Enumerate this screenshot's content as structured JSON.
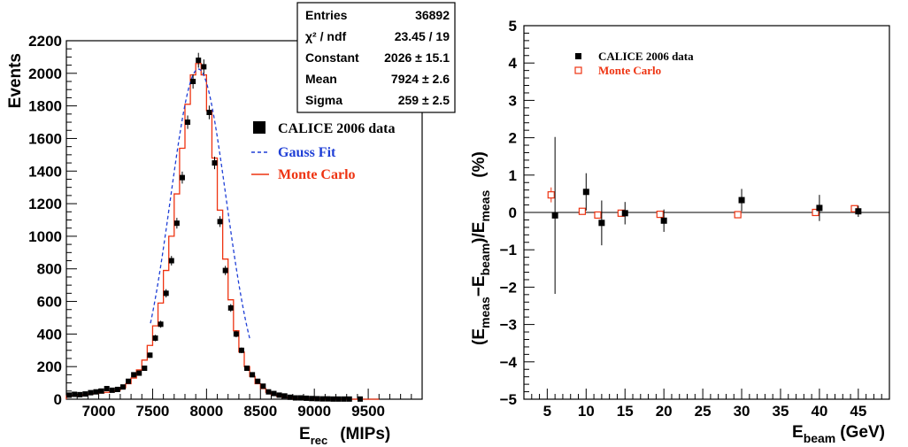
{
  "chart_data": [
    {
      "type": "histogram",
      "title": "",
      "xlabel": {
        "main": "E",
        "sub": "rec",
        "unit": "(MIPs)"
      },
      "ylabel": "Events",
      "xlim": [
        6700,
        10000
      ],
      "ylim": [
        0,
        2200
      ],
      "xticks": [
        7000,
        7500,
        8000,
        8500,
        9000,
        9500
      ],
      "yticks": [
        0,
        200,
        400,
        600,
        800,
        1000,
        1200,
        1400,
        1600,
        1800,
        2000,
        2200
      ],
      "bin_width": 50,
      "grid": false,
      "legend_position": "right",
      "stat_box": {
        "rows": [
          {
            "label": "Entries",
            "value": "36892"
          },
          {
            "label": "χ² / ndf",
            "value": "23.45 / 19"
          },
          {
            "label": "Constant",
            "value": "2026 ± 15.1"
          },
          {
            "label": "Mean",
            "value": "7924 ± 2.6"
          },
          {
            "label": "Sigma",
            "value": "259 ± 2.5"
          }
        ]
      },
      "legend": [
        {
          "label": "CALICE 2006 data",
          "color": "#000000",
          "marker": "square"
        },
        {
          "label": "Gauss Fit",
          "color": "#1f3fd6",
          "marker": "dashed-line"
        },
        {
          "label": "Monte Carlo",
          "color": "#ee3311",
          "marker": "line"
        }
      ],
      "gauss_fit": {
        "constant": 2026,
        "mean": 7924,
        "sigma": 259,
        "range": [
          7480,
          8400
        ]
      },
      "series": [
        {
          "name": "CALICE 2006 data",
          "x": [
            6725,
            6775,
            6825,
            6875,
            6925,
            6975,
            7025,
            7075,
            7125,
            7175,
            7225,
            7275,
            7325,
            7375,
            7425,
            7475,
            7525,
            7575,
            7625,
            7675,
            7725,
            7775,
            7825,
            7875,
            7925,
            7975,
            8025,
            8075,
            8125,
            8175,
            8225,
            8275,
            8325,
            8375,
            8425,
            8475,
            8525,
            8575,
            8625,
            8675,
            8725,
            8775,
            8825,
            8875,
            8925,
            8975,
            9025,
            9075,
            9125,
            9175,
            9225,
            9275,
            9325,
            9375,
            9425,
            9475,
            9525,
            9575
          ],
          "y": [
            25,
            30,
            28,
            32,
            40,
            45,
            50,
            65,
            55,
            60,
            75,
            110,
            150,
            160,
            190,
            270,
            375,
            460,
            650,
            850,
            1080,
            1360,
            1700,
            1950,
            2080,
            2040,
            1760,
            1450,
            1090,
            790,
            560,
            400,
            300,
            190,
            150,
            110,
            80,
            45,
            35,
            25,
            20,
            12,
            8,
            8,
            6,
            4,
            3,
            2,
            2,
            1,
            1,
            1,
            1,
            0,
            1,
            0,
            0,
            0
          ]
        },
        {
          "name": "Monte Carlo",
          "x": [
            6725,
            6775,
            6825,
            6875,
            6925,
            6975,
            7025,
            7075,
            7125,
            7175,
            7225,
            7275,
            7325,
            7375,
            7425,
            7475,
            7525,
            7575,
            7625,
            7675,
            7725,
            7775,
            7825,
            7875,
            7925,
            7975,
            8025,
            8075,
            8125,
            8175,
            8225,
            8275,
            8325,
            8375,
            8425,
            8475,
            8525,
            8575,
            8625,
            8675,
            8725,
            8775,
            8825,
            8875,
            8925,
            8975,
            9025,
            9075,
            9125,
            9175,
            9225,
            9275,
            9325,
            9375,
            9425,
            9475,
            9525,
            9575
          ],
          "y": [
            20,
            22,
            24,
            28,
            32,
            35,
            38,
            42,
            48,
            55,
            70,
            95,
            130,
            180,
            240,
            330,
            450,
            590,
            790,
            1000,
            1260,
            1540,
            1810,
            1990,
            2060,
            1990,
            1770,
            1480,
            1160,
            860,
            610,
            420,
            290,
            200,
            140,
            95,
            65,
            42,
            28,
            18,
            12,
            8,
            5,
            4,
            3,
            2,
            2,
            1,
            1,
            1,
            1,
            0,
            0,
            0,
            0,
            0,
            0,
            0
          ]
        }
      ]
    },
    {
      "type": "scatter",
      "title": "",
      "xlabel": {
        "main": "E",
        "sub": "beam",
        "unit": "(GeV)"
      },
      "ylabel": {
        "parts": [
          "(E",
          "meas",
          "−E",
          "beam",
          ")/E",
          "meas",
          "(%)"
        ]
      },
      "xlim": [
        2,
        49
      ],
      "ylim": [
        -5,
        5
      ],
      "xticks": [
        5,
        10,
        15,
        20,
        25,
        30,
        35,
        40,
        45
      ],
      "yticks": [
        -5,
        -4,
        -3,
        -2,
        -1,
        0,
        1,
        2,
        3,
        4,
        5
      ],
      "grid": false,
      "legend_position": "top-left",
      "legend": [
        {
          "label": "CALICE 2006 data",
          "color": "#000000",
          "marker": "filled-square"
        },
        {
          "label": "Monte Carlo",
          "color": "#ee3311",
          "marker": "open-square"
        }
      ],
      "series": [
        {
          "name": "CALICE 2006 data",
          "x": [
            6,
            10,
            12,
            15,
            20,
            30,
            40,
            45
          ],
          "y": [
            -0.08,
            0.55,
            -0.28,
            -0.02,
            -0.22,
            0.33,
            0.12,
            0.03
          ],
          "err": [
            2.1,
            0.5,
            0.6,
            0.3,
            0.3,
            0.3,
            0.35,
            0.15
          ]
        },
        {
          "name": "Monte Carlo",
          "x": [
            5.5,
            9.5,
            11.5,
            14.5,
            19.5,
            29.5,
            39.5,
            44.5
          ],
          "y": [
            0.47,
            0.03,
            -0.07,
            -0.02,
            -0.05,
            -0.06,
            0.0,
            0.1
          ],
          "err": [
            0.2,
            0.05,
            0.05,
            0.05,
            0.05,
            0.05,
            0.05,
            0.05
          ]
        }
      ]
    }
  ]
}
